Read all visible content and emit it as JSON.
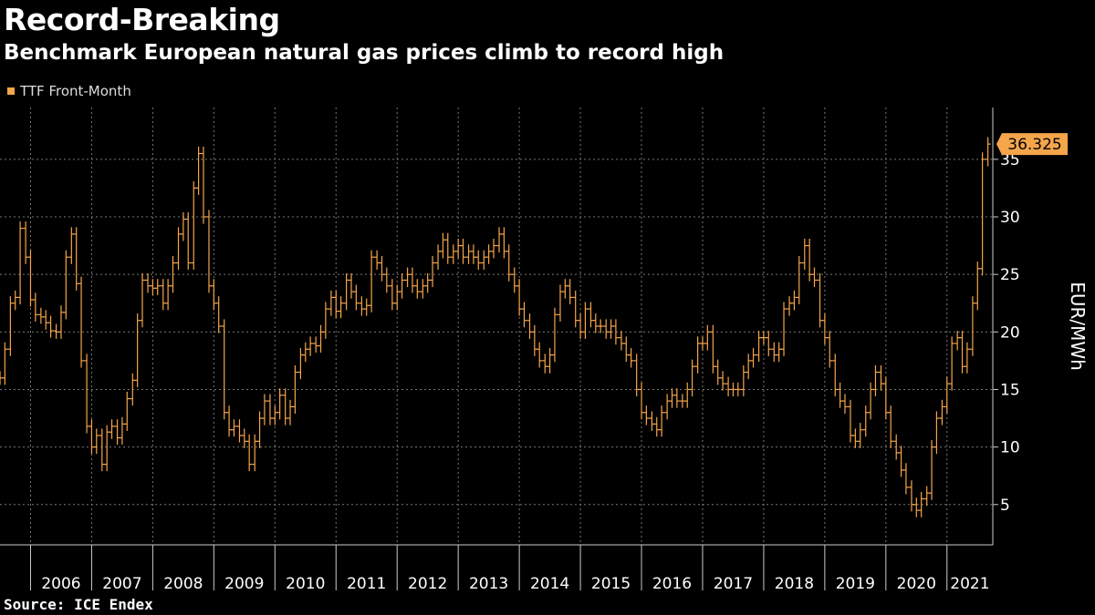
{
  "title": "Record-Breaking",
  "subtitle": "Benchmark European natural gas prices climb to record high",
  "source": "Source: ICE Endex",
  "colors": {
    "series": "#f5a54a",
    "background": "#000000",
    "grid": "#777777",
    "text": "#ffffff"
  },
  "chart_data": {
    "type": "line",
    "series": [
      {
        "name": "TTF Front-Month",
        "style": "ohlc-bars"
      }
    ],
    "ylabel": "EUR/MWh",
    "ylim": [
      1.5,
      39.5
    ],
    "yticks": [
      5,
      10,
      15,
      20,
      25,
      30,
      35
    ],
    "xlim": [
      2005.5,
      2021.75
    ],
    "x_categories": [
      "2006",
      "2007",
      "2008",
      "2009",
      "2010",
      "2011",
      "2012",
      "2013",
      "2014",
      "2015",
      "2016",
      "2017",
      "2018",
      "2019",
      "2020",
      "2021"
    ],
    "grid": true,
    "last_value_label": "36.325",
    "points": [
      [
        2005.5,
        16.0
      ],
      [
        2005.58,
        18.5
      ],
      [
        2005.67,
        22.5
      ],
      [
        2005.75,
        23.0
      ],
      [
        2005.83,
        29.0
      ],
      [
        2005.92,
        26.5
      ],
      [
        2006.0,
        22.8
      ],
      [
        2006.08,
        21.5
      ],
      [
        2006.17,
        21.3
      ],
      [
        2006.25,
        20.8
      ],
      [
        2006.33,
        20.1
      ],
      [
        2006.42,
        20.0
      ],
      [
        2006.5,
        21.7
      ],
      [
        2006.58,
        26.5
      ],
      [
        2006.67,
        28.5
      ],
      [
        2006.75,
        24.2
      ],
      [
        2006.83,
        17.5
      ],
      [
        2006.92,
        11.8
      ],
      [
        2007.0,
        10.0
      ],
      [
        2007.08,
        11.0
      ],
      [
        2007.17,
        8.5
      ],
      [
        2007.25,
        11.3
      ],
      [
        2007.33,
        11.8
      ],
      [
        2007.42,
        10.8
      ],
      [
        2007.5,
        12.0
      ],
      [
        2007.58,
        14.2
      ],
      [
        2007.67,
        15.8
      ],
      [
        2007.75,
        21.0
      ],
      [
        2007.83,
        24.5
      ],
      [
        2007.92,
        24.0
      ],
      [
        2008.0,
        23.8
      ],
      [
        2008.08,
        24.0
      ],
      [
        2008.17,
        22.5
      ],
      [
        2008.25,
        24.0
      ],
      [
        2008.33,
        26.0
      ],
      [
        2008.42,
        28.5
      ],
      [
        2008.5,
        29.8
      ],
      [
        2008.58,
        26.0
      ],
      [
        2008.67,
        32.5
      ],
      [
        2008.75,
        35.5
      ],
      [
        2008.83,
        30.0
      ],
      [
        2008.92,
        24.0
      ],
      [
        2009.0,
        22.5
      ],
      [
        2009.08,
        20.5
      ],
      [
        2009.17,
        13.0
      ],
      [
        2009.25,
        11.5
      ],
      [
        2009.33,
        11.8
      ],
      [
        2009.42,
        11.0
      ],
      [
        2009.5,
        10.5
      ],
      [
        2009.58,
        8.5
      ],
      [
        2009.67,
        10.5
      ],
      [
        2009.75,
        12.5
      ],
      [
        2009.83,
        14.0
      ],
      [
        2009.92,
        12.5
      ],
      [
        2010.0,
        13.0
      ],
      [
        2010.08,
        14.5
      ],
      [
        2010.17,
        12.5
      ],
      [
        2010.25,
        13.5
      ],
      [
        2010.33,
        16.5
      ],
      [
        2010.42,
        18.0
      ],
      [
        2010.5,
        18.5
      ],
      [
        2010.58,
        19.0
      ],
      [
        2010.67,
        18.8
      ],
      [
        2010.75,
        20.0
      ],
      [
        2010.83,
        22.0
      ],
      [
        2010.92,
        23.0
      ],
      [
        2011.0,
        21.8
      ],
      [
        2011.08,
        22.5
      ],
      [
        2011.17,
        24.5
      ],
      [
        2011.25,
        23.5
      ],
      [
        2011.33,
        22.5
      ],
      [
        2011.42,
        22.0
      ],
      [
        2011.5,
        22.3
      ],
      [
        2011.58,
        26.5
      ],
      [
        2011.67,
        26.0
      ],
      [
        2011.75,
        25.0
      ],
      [
        2011.83,
        24.0
      ],
      [
        2011.92,
        22.5
      ],
      [
        2012.0,
        23.5
      ],
      [
        2012.08,
        24.5
      ],
      [
        2012.17,
        25.0
      ],
      [
        2012.25,
        24.0
      ],
      [
        2012.33,
        23.5
      ],
      [
        2012.42,
        24.0
      ],
      [
        2012.5,
        24.5
      ],
      [
        2012.58,
        26.0
      ],
      [
        2012.67,
        27.0
      ],
      [
        2012.75,
        28.0
      ],
      [
        2012.83,
        26.5
      ],
      [
        2012.92,
        27.0
      ],
      [
        2013.0,
        27.5
      ],
      [
        2013.08,
        26.5
      ],
      [
        2013.17,
        27.0
      ],
      [
        2013.25,
        26.5
      ],
      [
        2013.33,
        26.0
      ],
      [
        2013.42,
        26.5
      ],
      [
        2013.5,
        27.0
      ],
      [
        2013.58,
        27.5
      ],
      [
        2013.67,
        28.5
      ],
      [
        2013.75,
        27.0
      ],
      [
        2013.83,
        25.0
      ],
      [
        2013.92,
        24.0
      ],
      [
        2014.0,
        22.0
      ],
      [
        2014.08,
        21.0
      ],
      [
        2014.17,
        20.0
      ],
      [
        2014.25,
        18.5
      ],
      [
        2014.33,
        17.5
      ],
      [
        2014.42,
        17.0
      ],
      [
        2014.5,
        18.0
      ],
      [
        2014.58,
        21.5
      ],
      [
        2014.67,
        23.5
      ],
      [
        2014.75,
        24.0
      ],
      [
        2014.83,
        23.0
      ],
      [
        2014.92,
        21.0
      ],
      [
        2015.0,
        20.0
      ],
      [
        2015.08,
        22.0
      ],
      [
        2015.17,
        21.0
      ],
      [
        2015.25,
        20.5
      ],
      [
        2015.33,
        20.5
      ],
      [
        2015.42,
        20.0
      ],
      [
        2015.5,
        20.5
      ],
      [
        2015.58,
        19.5
      ],
      [
        2015.67,
        19.0
      ],
      [
        2015.75,
        18.0
      ],
      [
        2015.83,
        17.5
      ],
      [
        2015.92,
        15.0
      ],
      [
        2016.0,
        13.0
      ],
      [
        2016.08,
        12.5
      ],
      [
        2016.17,
        12.0
      ],
      [
        2016.25,
        11.5
      ],
      [
        2016.33,
        13.0
      ],
      [
        2016.42,
        14.0
      ],
      [
        2016.5,
        14.5
      ],
      [
        2016.58,
        14.0
      ],
      [
        2016.67,
        14.0
      ],
      [
        2016.75,
        15.0
      ],
      [
        2016.83,
        17.0
      ],
      [
        2016.92,
        19.0
      ],
      [
        2017.0,
        19.0
      ],
      [
        2017.08,
        20.0
      ],
      [
        2017.17,
        17.0
      ],
      [
        2017.25,
        16.0
      ],
      [
        2017.33,
        15.5
      ],
      [
        2017.42,
        15.0
      ],
      [
        2017.5,
        15.0
      ],
      [
        2017.58,
        15.0
      ],
      [
        2017.67,
        16.5
      ],
      [
        2017.75,
        17.5
      ],
      [
        2017.83,
        18.0
      ],
      [
        2017.92,
        19.5
      ],
      [
        2018.0,
        19.5
      ],
      [
        2018.08,
        18.5
      ],
      [
        2018.17,
        18.0
      ],
      [
        2018.25,
        18.5
      ],
      [
        2018.33,
        22.0
      ],
      [
        2018.42,
        22.5
      ],
      [
        2018.5,
        23.0
      ],
      [
        2018.58,
        26.0
      ],
      [
        2018.67,
        27.5
      ],
      [
        2018.75,
        25.0
      ],
      [
        2018.83,
        24.5
      ],
      [
        2018.92,
        21.0
      ],
      [
        2019.0,
        19.5
      ],
      [
        2019.08,
        17.5
      ],
      [
        2019.17,
        15.0
      ],
      [
        2019.25,
        14.0
      ],
      [
        2019.33,
        13.5
      ],
      [
        2019.42,
        11.0
      ],
      [
        2019.5,
        10.5
      ],
      [
        2019.58,
        11.5
      ],
      [
        2019.67,
        13.0
      ],
      [
        2019.75,
        15.0
      ],
      [
        2019.83,
        16.5
      ],
      [
        2019.92,
        15.5
      ],
      [
        2020.0,
        13.0
      ],
      [
        2020.08,
        10.5
      ],
      [
        2020.17,
        9.5
      ],
      [
        2020.25,
        8.0
      ],
      [
        2020.33,
        6.5
      ],
      [
        2020.42,
        5.0
      ],
      [
        2020.5,
        4.5
      ],
      [
        2020.58,
        5.5
      ],
      [
        2020.67,
        6.0
      ],
      [
        2020.75,
        10.0
      ],
      [
        2020.83,
        12.5
      ],
      [
        2020.92,
        13.5
      ],
      [
        2021.0,
        15.5
      ],
      [
        2021.08,
        19.0
      ],
      [
        2021.17,
        19.5
      ],
      [
        2021.25,
        17.0
      ],
      [
        2021.33,
        18.5
      ],
      [
        2021.42,
        22.5
      ],
      [
        2021.5,
        25.5
      ],
      [
        2021.58,
        35.0
      ],
      [
        2021.67,
        36.325
      ]
    ]
  }
}
